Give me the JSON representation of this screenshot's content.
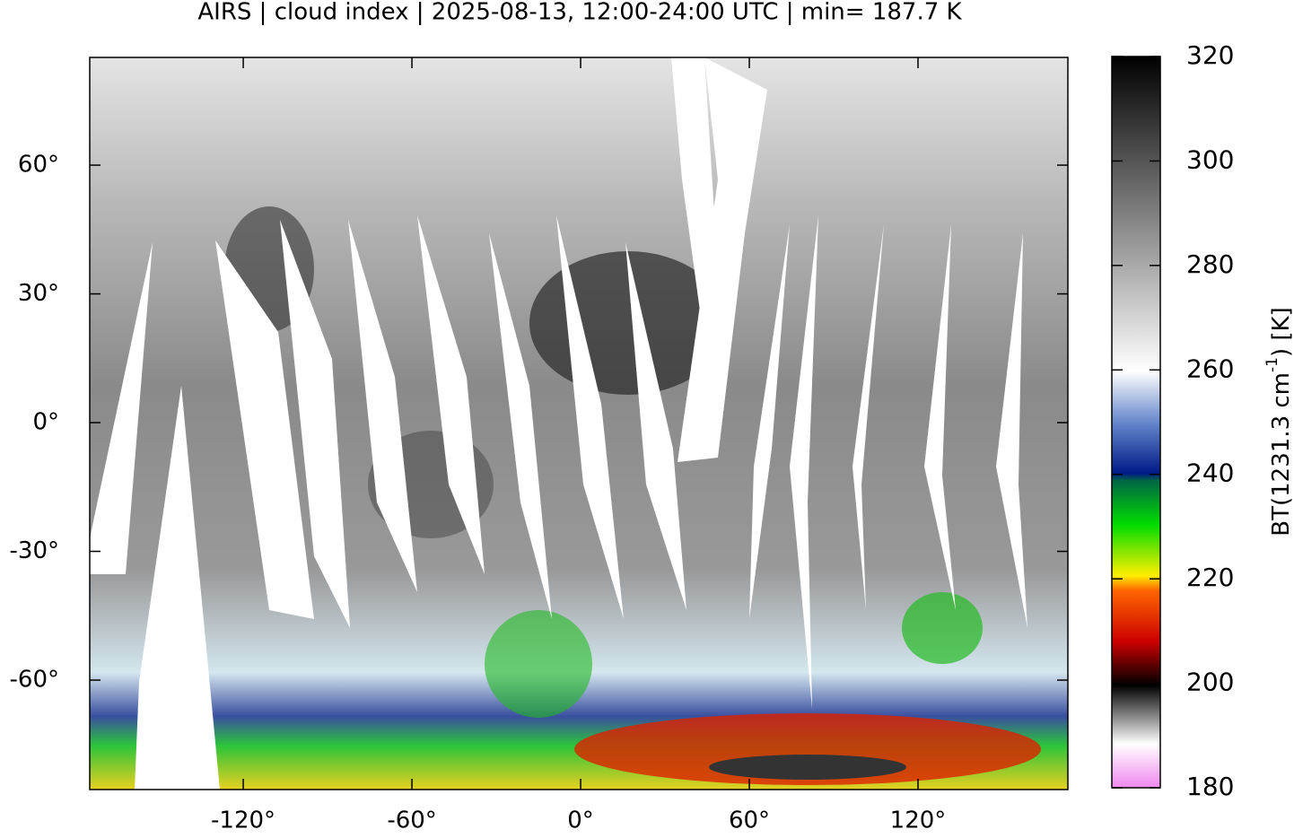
{
  "title": "AIRS | cloud index | 2025-08-13, 12:00-24:00 UTC | min= 187.7 K",
  "map": {
    "xlim": [
      -174.6,
      173.3
    ],
    "ylim": [
      -85.5,
      85.1
    ],
    "xticks": [
      {
        "value": -120,
        "label": "-120°"
      },
      {
        "value": -60,
        "label": "-60°"
      },
      {
        "value": 0,
        "label": "0°"
      },
      {
        "value": 60,
        "label": "60°"
      },
      {
        "value": 120,
        "label": "120°"
      }
    ],
    "yticks": [
      {
        "value": 60,
        "label": "60°"
      },
      {
        "value": 30,
        "label": "30°"
      },
      {
        "value": 0,
        "label": "0°"
      },
      {
        "value": -30,
        "label": "-30°"
      },
      {
        "value": -60,
        "label": "-60°"
      }
    ]
  },
  "colorbar": {
    "ylim": [
      180,
      320
    ],
    "yticks": [
      180,
      200,
      220,
      240,
      260,
      280,
      300,
      320
    ],
    "label": {
      "main": "BT(1231.3 cm",
      "sup": "-1",
      "end": ") [K]"
    }
  }
}
